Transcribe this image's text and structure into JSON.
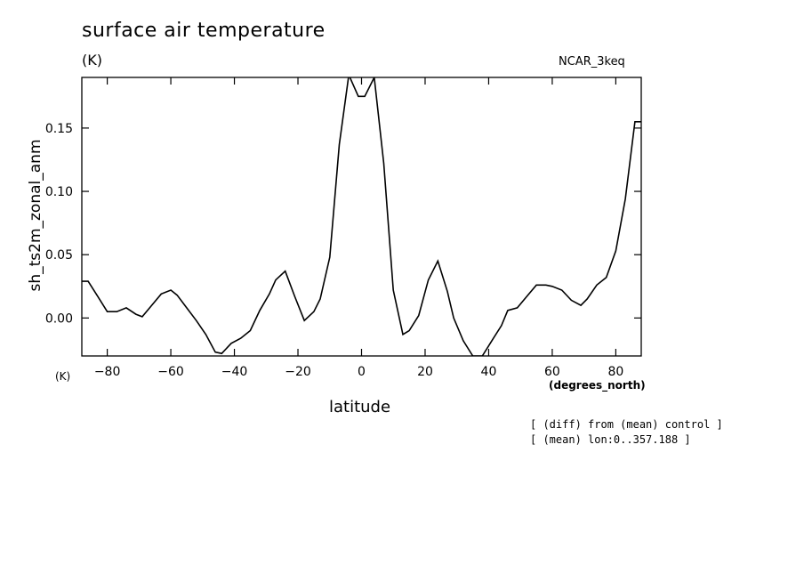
{
  "header": {
    "title": "surface air temperature",
    "unit_top": "(K)",
    "model": "NCAR_3keq"
  },
  "footer": {
    "unit_bottom": "(K)",
    "note_1": "[ (diff) from (mean) control ]",
    "note_2": "[ (mean) lon:0..357.188 ]"
  },
  "chart_data": {
    "type": "line",
    "title": "surface air temperature",
    "xlabel": "latitude",
    "xunit": "(degrees_north)",
    "ylabel": "sh_ts2m_zonal_anm",
    "xlim": [
      -88,
      88
    ],
    "ylim": [
      -0.03,
      0.19
    ],
    "xticks": [
      -80,
      -60,
      -40,
      -20,
      0,
      20,
      40,
      60,
      80
    ],
    "xtick_labels": [
      "−80",
      "−60",
      "−40",
      "−20",
      "0",
      "20",
      "40",
      "60",
      "80"
    ],
    "yticks": [
      0.0,
      0.05,
      0.1,
      0.15
    ],
    "ytick_labels": [
      "0.00",
      "0.05",
      "0.10",
      "0.15"
    ],
    "grid": false,
    "series": [
      {
        "x": [
          -88,
          -86,
          -83,
          -80,
          -77,
          -74,
          -71,
          -69,
          -66,
          -63,
          -60,
          -58,
          -55,
          -52,
          -49,
          -46,
          -44,
          -41,
          -38,
          -35,
          -32,
          -29,
          -27,
          -24,
          -21,
          -18,
          -15,
          -13,
          -10,
          -7,
          -4,
          -1,
          1,
          4,
          7,
          10,
          13,
          15,
          18,
          21,
          24,
          27,
          29,
          32,
          35,
          38,
          41,
          44,
          46,
          49,
          52,
          55,
          58,
          60,
          63,
          66,
          69,
          71,
          74,
          77,
          80,
          83,
          86,
          88
        ],
        "y": [
          0.029,
          0.029,
          0.017,
          0.005,
          0.005,
          0.008,
          0.003,
          0.001,
          0.01,
          0.019,
          0.022,
          0.018,
          0.008,
          -0.002,
          -0.013,
          -0.027,
          -0.028,
          -0.02,
          -0.016,
          -0.01,
          0.006,
          0.019,
          0.03,
          0.037,
          0.017,
          -0.002,
          0.005,
          0.015,
          0.048,
          0.137,
          0.192,
          0.175,
          0.175,
          0.19,
          0.122,
          0.022,
          -0.013,
          -0.01,
          0.002,
          0.03,
          0.045,
          0.021,
          0.0,
          -0.018,
          -0.03,
          -0.03,
          -0.018,
          -0.006,
          0.006,
          0.008,
          0.017,
          0.026,
          0.026,
          0.025,
          0.022,
          0.014,
          0.01,
          0.015,
          0.026,
          0.032,
          0.053,
          0.094,
          0.155,
          0.155
        ]
      }
    ]
  }
}
